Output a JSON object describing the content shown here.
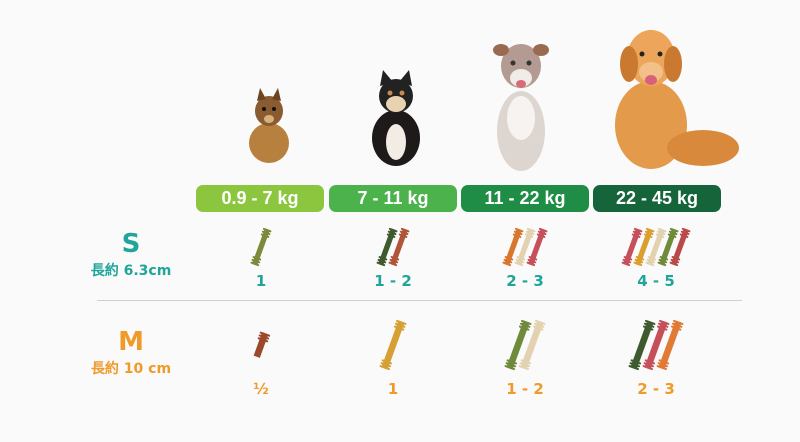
{
  "colors": {
    "s_accent": "#1fa59a",
    "m_accent": "#f09a2a"
  },
  "weight_bands": [
    {
      "label": "0.9 - 7 kg",
      "color": "#8cc63f",
      "dog": "yorkshire-terrier"
    },
    {
      "label": "7 - 11 kg",
      "color": "#4cb24b",
      "dog": "shiba-inu"
    },
    {
      "label": "11 - 22 kg",
      "color": "#1f8d45",
      "dog": "australian-shepherd"
    },
    {
      "label": "22 - 45 kg",
      "color": "#16643a",
      "dog": "golden-retriever"
    }
  ],
  "sizes": [
    {
      "letter": "S",
      "length": "長約 6.3cm",
      "counts": [
        "1",
        "1 - 2",
        "2 - 3",
        "4 - 5"
      ],
      "chews": [
        [
          "#7d8a3a"
        ],
        [
          "#3f5a2e",
          "#b0553a"
        ],
        [
          "#d8762e",
          "#e2d2b0",
          "#c5505a"
        ],
        [
          "#c5505a",
          "#d9a030",
          "#e2d2b0",
          "#6f8a3a",
          "#b84a4a"
        ]
      ]
    },
    {
      "letter": "M",
      "length": "長約 10 cm",
      "counts": [
        "½",
        "1",
        "1 - 2",
        "2 - 3"
      ],
      "chews": [
        [
          "#9a4a2a"
        ],
        [
          "#d6a035"
        ],
        [
          "#6f8a3a",
          "#e2d2b0"
        ],
        [
          "#3f5a2e",
          "#c5505a",
          "#e07a35"
        ]
      ]
    }
  ]
}
